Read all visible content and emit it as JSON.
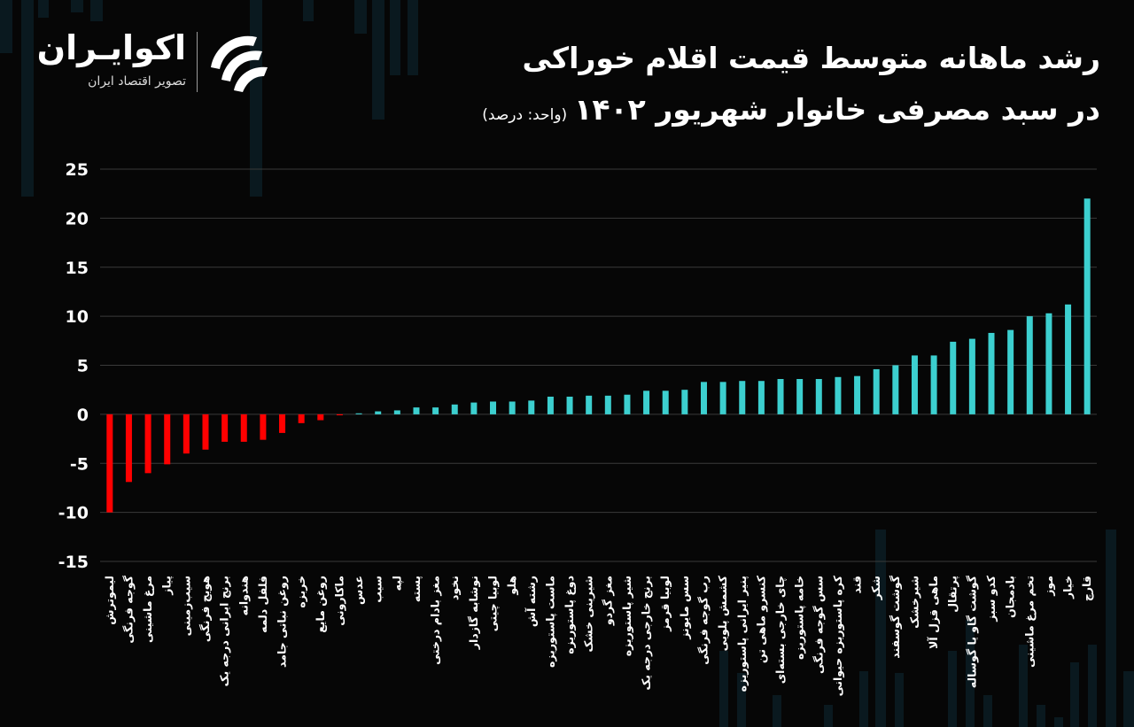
{
  "header": {
    "title_line1": "رشد ماهانه متوسط قیمت اقلام خوراکی",
    "title_line2": "در سبد مصرفی خانوار شهریور ۱۴۰۲",
    "unit_note": "(واحد: درصد)"
  },
  "brand": {
    "name": "اکوایـران",
    "subtitle": "تصویر اقتصاد ایران",
    "logo_icon": "ecoiran-swirl-logo"
  },
  "colors": {
    "negative": "#ff0000",
    "positive": "#3ccfcf",
    "background": "#060606",
    "grid": "#3a3a3a"
  },
  "chart_data": {
    "type": "bar",
    "ylim": [
      -15,
      25
    ],
    "yticks": [
      25,
      20,
      15,
      10,
      5,
      0,
      -5,
      -10,
      -15
    ],
    "grid": true,
    "categories": [
      "لیموترش",
      "گوجه فرنگی",
      "مرغ ماشینی",
      "پیاز",
      "سیب‌زمینی",
      "هویج فرنگی",
      "برنج ایرانی درجه یک",
      "هندوانه",
      "فلفل دلمه",
      "روغن نباتی جامد",
      "خربزه",
      "روغن مایع",
      "ماکارونی",
      "عدس",
      "سیب",
      "لپه",
      "پسته",
      "مغز بادام درختی",
      "نخود",
      "نوشابه گازدار",
      "لوبیا چیتی",
      "هلو",
      "رشته آش",
      "ماست پاستوریزه",
      "دوغ پاستوریزه",
      "شیرینی خشک",
      "مغز گردو",
      "شیر پاستوریزه",
      "برنج خارجی درجه یک",
      "لوبیا قرمز",
      "سس مایونز",
      "رب گوجه فرنگی",
      "کشمش پلویی",
      "پنیر ایرانی پاستوریزه",
      "کنسرو ماهی تن",
      "چای خارجی بسته‌ای",
      "خامه پاستوریزه",
      "سس گوجه فرنگی",
      "کره پاستوریزه حیوانی",
      "قند",
      "شکر",
      "گوشت گوسفند",
      "شیرخشک",
      "ماهی قزل آلا",
      "پرتقال",
      "گوشت گاو یا گوساله",
      "کدو سبز",
      "بادمجان",
      "تخم مرغ ماشینی",
      "موز",
      "خیار",
      "قارچ"
    ],
    "values": [
      -10.0,
      -6.9,
      -6.0,
      -5.1,
      -4.0,
      -3.6,
      -2.8,
      -2.8,
      -2.6,
      -1.9,
      -0.9,
      -0.6,
      -0.1,
      0.1,
      0.3,
      0.4,
      0.7,
      0.7,
      1.0,
      1.2,
      1.3,
      1.3,
      1.4,
      1.8,
      1.8,
      1.9,
      1.9,
      2.0,
      2.4,
      2.4,
      2.5,
      3.3,
      3.3,
      3.4,
      3.4,
      3.6,
      3.6,
      3.6,
      3.8,
      3.9,
      4.6,
      5.0,
      6.0,
      6.0,
      7.4,
      7.7,
      8.3,
      8.6,
      10.0,
      10.3,
      11.2,
      22.0
    ]
  }
}
